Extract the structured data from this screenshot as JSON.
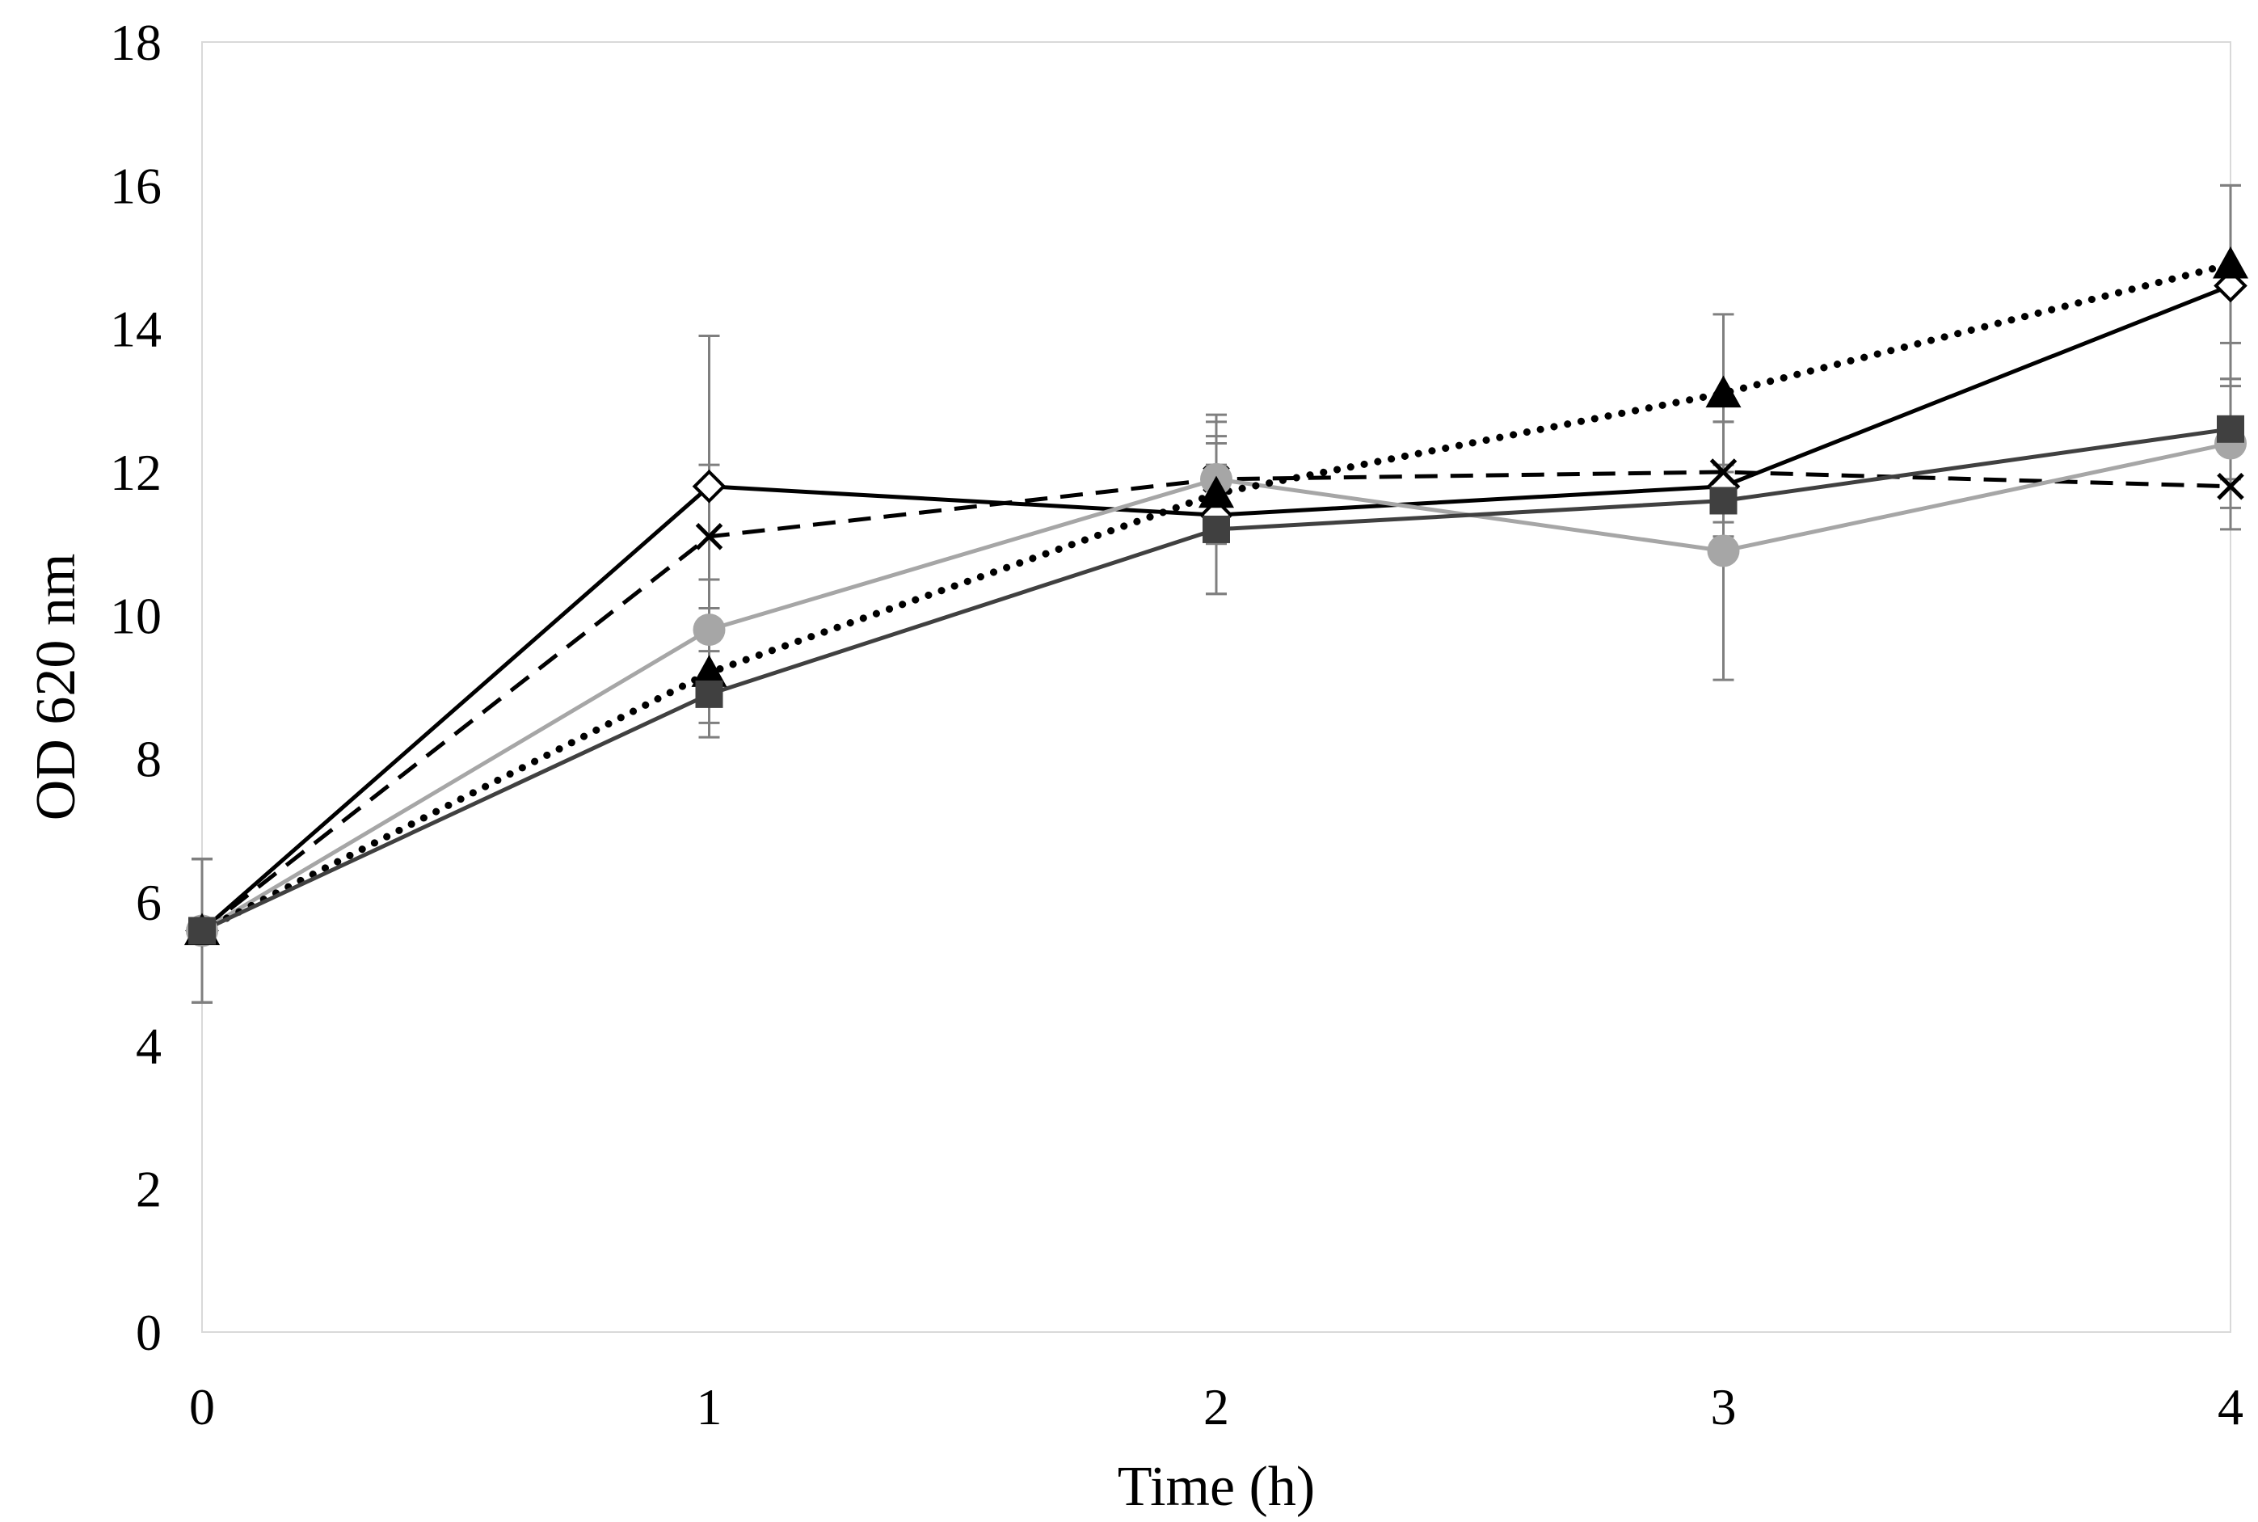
{
  "chart_data": {
    "type": "line",
    "xlabel": "Time (h)",
    "ylabel": "OD 620 nm",
    "x": [
      0,
      1,
      2,
      3,
      4
    ],
    "xlim": [
      0,
      4
    ],
    "ylim": [
      0,
      18
    ],
    "yticks": [
      0,
      2,
      4,
      6,
      8,
      10,
      12,
      14,
      16,
      18
    ],
    "xticks": [
      0,
      1,
      2,
      3,
      4
    ],
    "grid": false,
    "legend": "none",
    "series": [
      {
        "marker": "diamond-open",
        "line_style": "solid",
        "color": "#000000",
        "values": [
          5.6,
          11.8,
          11.4,
          11.8,
          14.6
        ],
        "error": [
          1.0,
          2.1,
          1.1,
          0.9,
          1.4
        ]
      },
      {
        "marker": "x",
        "line_style": "dashed",
        "color": "#000000",
        "values": [
          5.6,
          11.1,
          11.9,
          12.0,
          11.8
        ],
        "error": [
          1.0,
          1.0,
          0.9,
          0.7,
          0.6
        ]
      },
      {
        "marker": "circle",
        "line_style": "solid",
        "color": "#a6a6a6",
        "values": [
          5.6,
          9.8,
          11.9,
          10.9,
          12.4
        ],
        "error": [
          1.0,
          0.7,
          0.8,
          1.8,
          0.9
        ]
      },
      {
        "marker": "triangle",
        "line_style": "dotted",
        "color": "#000000",
        "values": [
          5.6,
          9.2,
          11.7,
          13.1,
          14.9
        ],
        "error": [
          1.0,
          0.7,
          0.7,
          1.1,
          1.1
        ]
      },
      {
        "marker": "square",
        "line_style": "solid",
        "color": "#404040",
        "values": [
          5.6,
          8.9,
          11.2,
          11.6,
          12.6
        ],
        "error": [
          1.0,
          0.6,
          0.9,
          0.5,
          0.7
        ]
      }
    ]
  }
}
